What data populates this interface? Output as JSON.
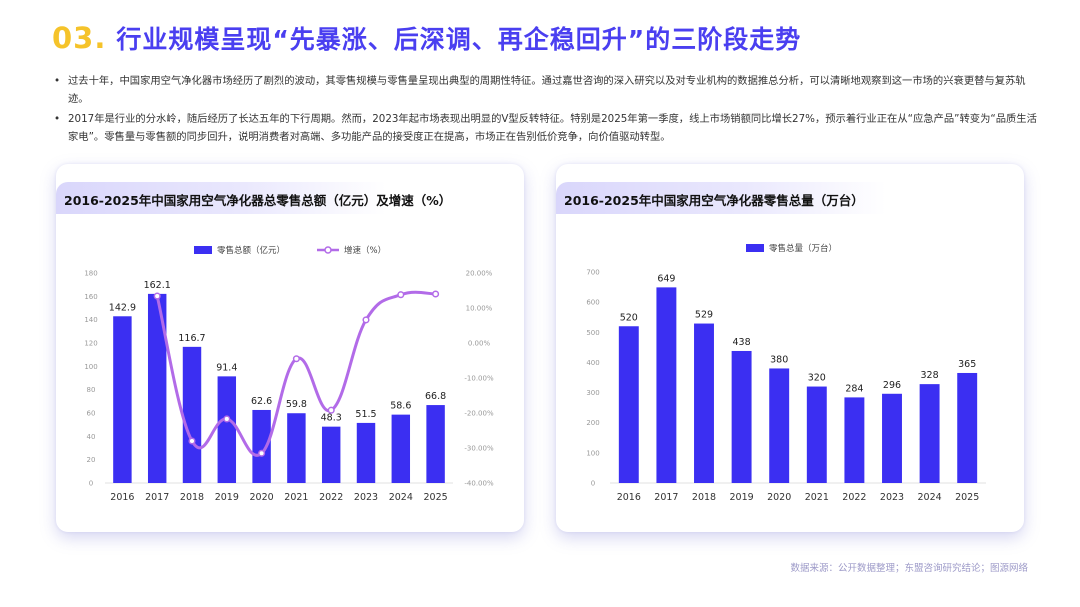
{
  "header": {
    "number": "03.",
    "title": "行业规模呈现“先暴涨、后深调、再企稳回升”的三阶段走势"
  },
  "bullets": [
    "过去十年，中国家用空气净化器市场经历了剧烈的波动，其零售规模与零售量呈现出典型的周期性特征。通过嘉世咨询的深入研究以及对专业机构的数据推总分析，可以清晰地观察到这一市场的兴衰更替与复苏轨迹。",
    "2017年是行业的分水岭，随后经历了长达五年的下行周期。然而，2023年起市场表现出明显的V型反转特征。特别是2025年第一季度，线上市场销额同比增长27%，预示着行业正在从“应急产品”转变为“品质生活家电”。零售量与零售额的同步回升，说明消费者对高端、多功能产品的接受度正在提高，市场正在告别低价竞争，向价值驱动转型。"
  ],
  "chart_data": [
    {
      "type": "bar",
      "title": "2016-2025年中国家用空气净化器总零售总额（亿元）及增速（%）",
      "categories": [
        "2016",
        "2017",
        "2018",
        "2019",
        "2020",
        "2021",
        "2022",
        "2023",
        "2024",
        "2025"
      ],
      "series": [
        {
          "name": "零售总额（亿元）",
          "type": "bar",
          "axis": "left",
          "color": "#3b2ff2",
          "values": [
            142.9,
            162.1,
            116.7,
            91.4,
            62.6,
            59.8,
            48.3,
            51.5,
            58.6,
            66.8
          ]
        },
        {
          "name": "增速（%）",
          "type": "line",
          "axis": "right",
          "color": "#b26be8",
          "values": [
            null,
            13.4,
            -28.0,
            -21.7,
            -31.5,
            -4.5,
            -19.2,
            6.6,
            13.8,
            14.0
          ]
        }
      ],
      "ylim": [
        0,
        180
      ],
      "yticks": [
        "0",
        "20",
        "40",
        "60",
        "80",
        "100",
        "120",
        "140",
        "160",
        "180"
      ],
      "y2lim": [
        -40,
        20
      ],
      "y2ticks": [
        "-40.00%",
        "-30.00%",
        "-20.00%",
        "-10.00%",
        "0.00%",
        "10.00%",
        "20.00%"
      ],
      "grid": false,
      "legend_position": "top"
    },
    {
      "type": "bar",
      "title": "2016-2025年中国家用空气净化器零售总量（万台）",
      "categories": [
        "2016",
        "2017",
        "2018",
        "2019",
        "2020",
        "2021",
        "2022",
        "2023",
        "2024",
        "2025"
      ],
      "series": [
        {
          "name": "零售总量（万台）",
          "type": "bar",
          "color": "#3b2ff2",
          "values": [
            520,
            649,
            529,
            438,
            380,
            320,
            284,
            296,
            328,
            365
          ]
        }
      ],
      "ylim": [
        0,
        700
      ],
      "yticks": [
        "0",
        "100",
        "200",
        "300",
        "400",
        "500",
        "600",
        "700"
      ],
      "grid": false,
      "legend_position": "top"
    }
  ],
  "footer": {
    "source": "数据来源：公开数据整理；东盟咨询研究结论；图源网络"
  }
}
